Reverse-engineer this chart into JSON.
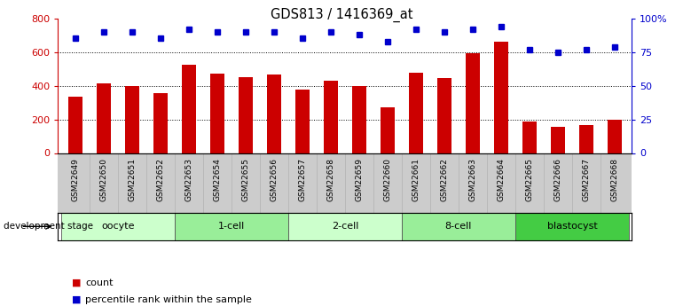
{
  "title": "GDS813 / 1416369_at",
  "samples": [
    "GSM22649",
    "GSM22650",
    "GSM22651",
    "GSM22652",
    "GSM22653",
    "GSM22654",
    "GSM22655",
    "GSM22656",
    "GSM22657",
    "GSM22658",
    "GSM22659",
    "GSM22660",
    "GSM22661",
    "GSM22662",
    "GSM22663",
    "GSM22664",
    "GSM22665",
    "GSM22666",
    "GSM22667",
    "GSM22668"
  ],
  "counts": [
    335,
    415,
    400,
    355,
    525,
    470,
    450,
    465,
    375,
    430,
    400,
    270,
    475,
    445,
    595,
    660,
    185,
    155,
    165,
    200
  ],
  "percentiles": [
    85,
    90,
    90,
    85,
    92,
    90,
    90,
    90,
    85,
    90,
    88,
    83,
    92,
    90,
    92,
    94,
    77,
    75,
    77,
    79
  ],
  "stages": [
    {
      "label": "oocyte",
      "start": 0,
      "end": 4,
      "color": "#ccffcc"
    },
    {
      "label": "1-cell",
      "start": 4,
      "end": 8,
      "color": "#99ee99"
    },
    {
      "label": "2-cell",
      "start": 8,
      "end": 12,
      "color": "#ccffcc"
    },
    {
      "label": "8-cell",
      "start": 12,
      "end": 16,
      "color": "#99ee99"
    },
    {
      "label": "blastocyst",
      "start": 16,
      "end": 20,
      "color": "#44cc44"
    }
  ],
  "bar_color": "#cc0000",
  "dot_color": "#0000cc",
  "ylim_left": [
    0,
    800
  ],
  "ylim_right": [
    0,
    100
  ],
  "yticks_left": [
    0,
    200,
    400,
    600,
    800
  ],
  "yticks_right": [
    0,
    25,
    50,
    75,
    100
  ],
  "ytick_labels_right": [
    "0",
    "25",
    "50",
    "75",
    "100%"
  ],
  "grid_vals": [
    200,
    400,
    600
  ],
  "background_color": "#ffffff",
  "tick_bg_color": "#cccccc",
  "bar_width": 0.5,
  "dev_stage_label": "development stage",
  "legend_count": "count",
  "legend_percentile": "percentile rank within the sample"
}
